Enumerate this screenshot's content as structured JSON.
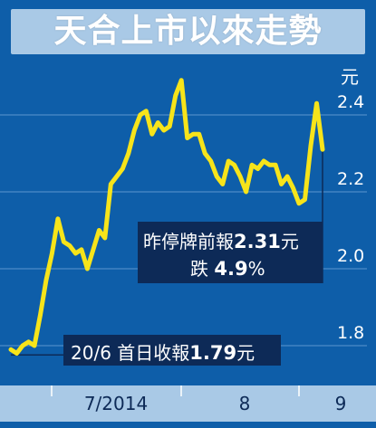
{
  "title": "天合上市以來走勢",
  "chart_data": {
    "type": "line",
    "title": "天合上市以來走勢",
    "unit": "元",
    "ylim": [
      1.75,
      2.5
    ],
    "yticks": [
      1.8,
      2.0,
      2.2,
      2.4
    ],
    "ytick_labels": [
      "1.8",
      "2.0",
      "2.2",
      "2.4"
    ],
    "xtick_labels": [
      "7/2014",
      "8",
      "9"
    ],
    "series": [
      {
        "color": "#f7e41a",
        "values": [
          1.79,
          1.78,
          1.8,
          1.81,
          1.8,
          1.88,
          1.97,
          2.04,
          2.13,
          2.07,
          2.06,
          2.04,
          2.05,
          2.0,
          2.05,
          2.1,
          2.08,
          2.22,
          2.24,
          2.26,
          2.3,
          2.36,
          2.4,
          2.41,
          2.35,
          2.38,
          2.36,
          2.37,
          2.45,
          2.49,
          2.34,
          2.35,
          2.35,
          2.3,
          2.28,
          2.24,
          2.22,
          2.28,
          2.27,
          2.24,
          2.2,
          2.27,
          2.26,
          2.28,
          2.27,
          2.27,
          2.22,
          2.24,
          2.21,
          2.17,
          2.18,
          2.32,
          2.43,
          2.31
        ]
      }
    ],
    "annotations": [
      {
        "text": [
          "昨停牌前報",
          "2.31",
          "元"
        ],
        "line2": [
          "跌",
          "4.9",
          "%"
        ]
      },
      {
        "text": [
          "20/6 首日收報",
          "1.79",
          "元"
        ]
      }
    ]
  },
  "colors": {
    "background": "#0e5ea9",
    "line": "#f7e41a",
    "panel": "#a9c9e6",
    "label_box": "#0d2a57"
  }
}
